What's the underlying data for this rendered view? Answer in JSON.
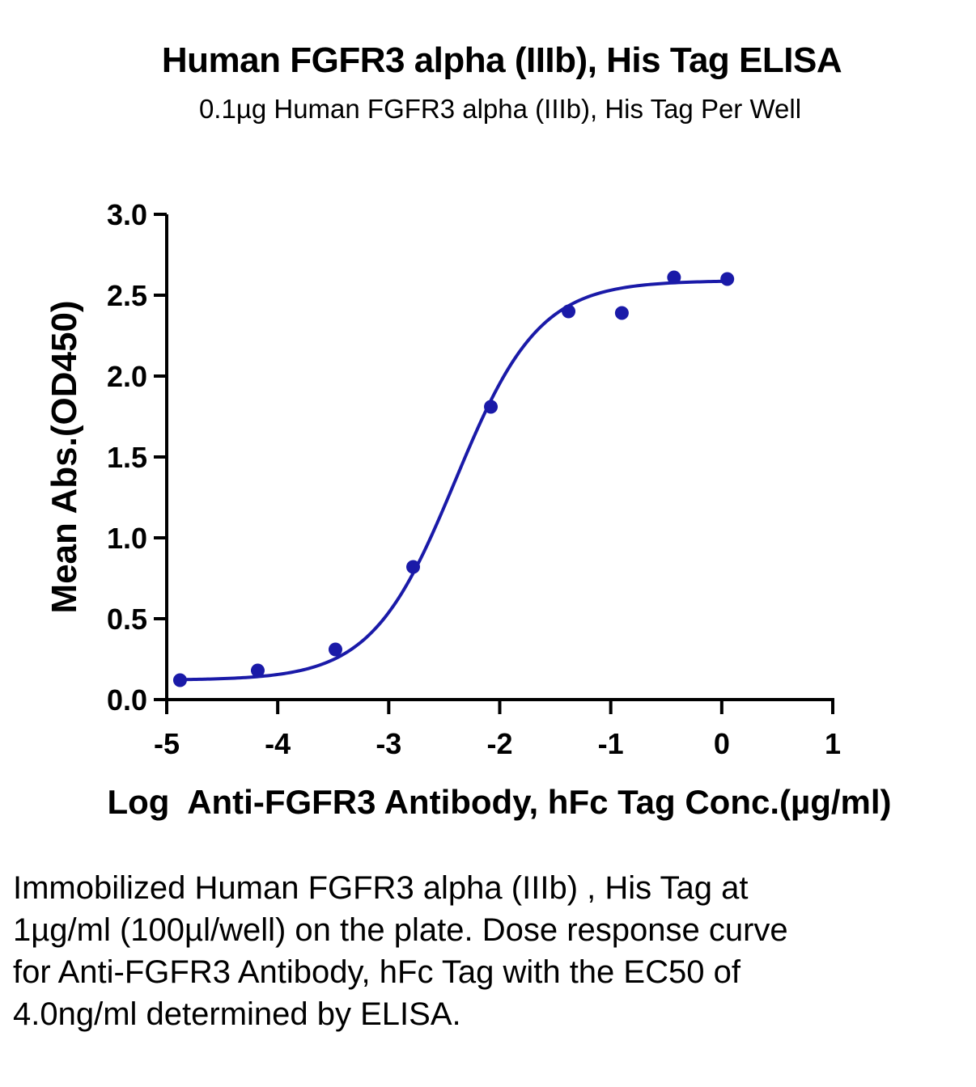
{
  "chart_data": {
    "type": "scatter",
    "title": "Human FGFR3 alpha (IIIb), His Tag ELISA",
    "subtitle": "0.1µg Human FGFR3 alpha (IIIb), His Tag Per Well",
    "xlabel": "Log  Anti-FGFR3 Antibody, hFc Tag Conc.(µg/ml)",
    "ylabel": "Mean Abs.(OD450)",
    "xlim": [
      -5,
      1
    ],
    "ylim": [
      0,
      3.0
    ],
    "xticks": [
      -5,
      -4,
      -3,
      -2,
      -1,
      0,
      1
    ],
    "xtick_labels": [
      "-5",
      "-4",
      "-3",
      "-2",
      "-1",
      "0",
      "1"
    ],
    "yticks": [
      0,
      0.5,
      1.0,
      1.5,
      2.0,
      2.5,
      3.0
    ],
    "ytick_labels": [
      "0.0",
      "0.5",
      "1.0",
      "1.5",
      "2.0",
      "2.5",
      "3.0"
    ],
    "grid": false,
    "color": "#1a1aa8",
    "series": [
      {
        "x": [
          -4.88,
          -4.18,
          -3.48,
          -2.78,
          -2.08,
          -1.38,
          -0.9,
          -0.43,
          0.05
        ],
        "y": [
          0.12,
          0.18,
          0.31,
          0.82,
          1.81,
          2.4,
          2.39,
          2.61,
          2.6
        ]
      }
    ],
    "fit_curve": {
      "model": "4PL",
      "bottom": 0.12,
      "top": 2.59,
      "log_ec50": -2.4,
      "hill_slope": 1.15,
      "x_range": [
        -4.88,
        0.05
      ]
    }
  },
  "caption": "Immobilized Human FGFR3 alpha (IIIb) , His Tag at 1µg/ml (100µl/well) on the plate. Dose response curve for Anti-FGFR3 Antibody, hFc Tag with the EC50 of 4.0ng/ml determined by ELISA."
}
